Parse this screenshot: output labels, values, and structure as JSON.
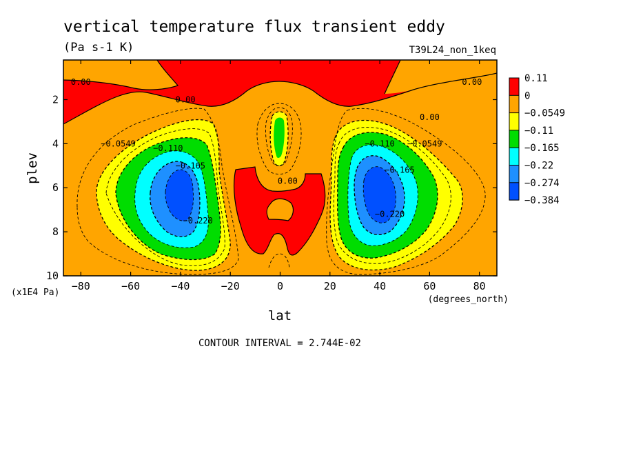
{
  "header": {
    "title": "vertical temperature flux transient eddy",
    "units": "(Pa s-1 K)",
    "run_id": "T39L24_non_1keq"
  },
  "footer": {
    "contour_interval": "CONTOUR INTERVAL = 2.744E-02"
  },
  "chart_data": {
    "type": "heatmap",
    "subtype": "filled-contour",
    "xlabel": "lat",
    "x_unit_label": "(degrees_north)",
    "ylabel": "plev",
    "y_unit_label": "(x1E4 Pa)",
    "xlim": [
      -87,
      87
    ],
    "ylim": [
      0.2,
      10
    ],
    "y_inverted": true,
    "x_ticks": [
      -80,
      -60,
      -40,
      -20,
      0,
      20,
      40,
      60,
      80
    ],
    "y_ticks": [
      2,
      4,
      6,
      8,
      10
    ],
    "colorbar": {
      "levels": [
        "0.11",
        "0",
        "-0.0549",
        "-0.11",
        "-0.165",
        "-0.22",
        "-0.274",
        "-0.384"
      ],
      "colors": [
        "#ff0000",
        "#ffa500",
        "#ffff00",
        "#00dd00",
        "#00ffff",
        "#1e90ff",
        "#0050ff"
      ]
    },
    "contour_labels": [
      {
        "text": "0.00",
        "lat": -80,
        "plev": 1.2
      },
      {
        "text": "0.00",
        "lat": -38,
        "plev": 2.0
      },
      {
        "text": "0.00",
        "lat": 60,
        "plev": 2.8
      },
      {
        "text": "0.00",
        "lat": 77,
        "plev": 1.2
      },
      {
        "text": "0.00",
        "lat": 3,
        "plev": 5.7
      },
      {
        "text": "-0.0549",
        "lat": -65,
        "plev": 4.0
      },
      {
        "text": "-0.0549",
        "lat": 58,
        "plev": 4.0
      },
      {
        "text": "-0.110",
        "lat": -45,
        "plev": 4.2
      },
      {
        "text": "-0.110",
        "lat": 40,
        "plev": 4.0
      },
      {
        "text": "-0.165",
        "lat": -36,
        "plev": 5.0
      },
      {
        "text": "-0.165",
        "lat": 48,
        "plev": 5.2
      },
      {
        "text": "-0.220",
        "lat": -33,
        "plev": 7.5
      },
      {
        "text": "-0.220",
        "lat": 44,
        "plev": 7.2
      }
    ]
  }
}
